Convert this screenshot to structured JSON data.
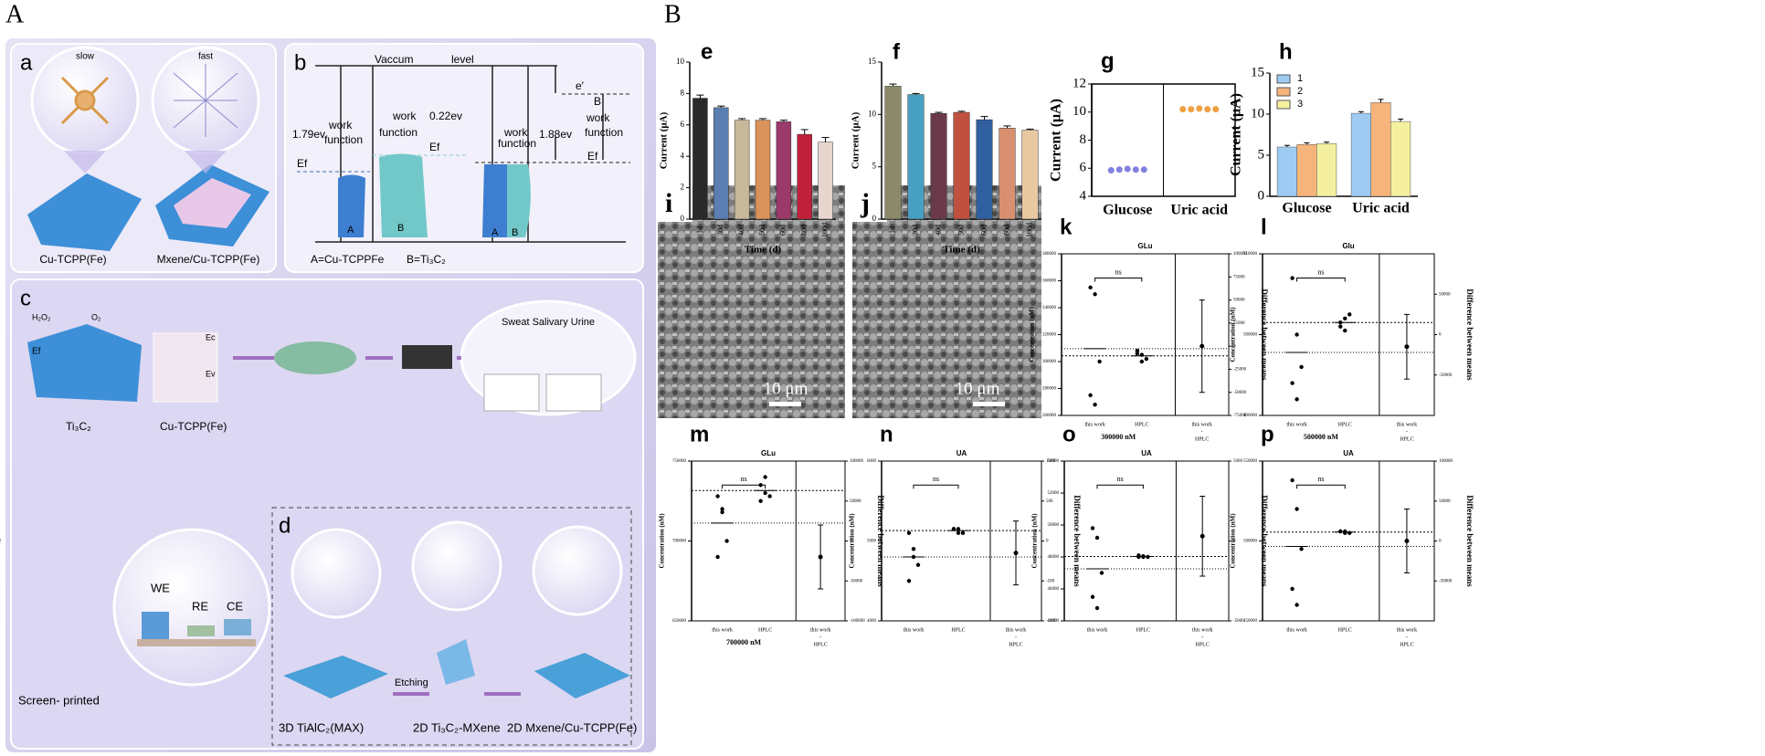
{
  "figure": {
    "label_A": "A",
    "label_B": "B"
  },
  "panel_a": {
    "label": "a",
    "slow": "slow",
    "fast": "fast",
    "caption_left": "Cu-TCPP(Fe)",
    "caption_right": "Mxene/Cu-TCPP(Fe)"
  },
  "panel_b": {
    "label": "b",
    "texts": [
      "Vaccum",
      "level",
      "1.79ev",
      "work",
      "function",
      "work",
      "function",
      "0.22ev",
      "Ef",
      "Ef",
      "A",
      "B",
      "A",
      "B",
      "work",
      "function",
      "1.88ev",
      "e′",
      "B",
      "work",
      "function",
      "Ef",
      "A=Cu-TCPPFe",
      "B=Ti₃C₂"
    ]
  },
  "panel_c": {
    "label": "c",
    "texts": [
      "H₂O₂",
      "O₂",
      "Ec",
      "Ef",
      "Ev",
      "Ti₃C₂",
      "Cu-TCPP(Fe)",
      "Sweat  Salivary  Urine",
      "WE",
      "RE",
      "CE",
      "Screen- printed"
    ]
  },
  "panel_d": {
    "label": "d",
    "texts": [
      "3D TiAlC₂(MAX)",
      "Etching",
      "2D Ti₃C₂-MXene",
      "2D Mxene/Cu-TCPP(Fe)"
    ]
  },
  "images": [
    {
      "label": "i",
      "scale": "10 μm"
    },
    {
      "label": "j",
      "scale": "10 μm"
    }
  ],
  "chart_data": [
    {
      "type": "bar",
      "label": "e",
      "categories": [
        "1d",
        "30d",
        "40d",
        "50d",
        "60d",
        "80d",
        "100d"
      ],
      "values": [
        7.7,
        7.1,
        6.3,
        6.3,
        6.2,
        5.4,
        4.9
      ],
      "errors": [
        0.2,
        0.1,
        0.1,
        0.1,
        0.1,
        0.3,
        0.3
      ],
      "colors": [
        "#2a2a2a",
        "#5a7fb0",
        "#c8b89a",
        "#d9925a",
        "#9a3a6a",
        "#c0203a",
        "#e6d6ce"
      ],
      "ylim": [
        0,
        10
      ],
      "yticks": [
        0,
        2,
        4,
        6,
        8,
        10
      ],
      "ylabel": "Current (μA)",
      "xlabel": "Time (d)"
    },
    {
      "type": "bar",
      "label": "f",
      "categories": [
        "1d",
        "30d",
        "40d",
        "50d",
        "60d",
        "80d",
        "100d"
      ],
      "values": [
        12.7,
        11.9,
        10.1,
        10.2,
        9.5,
        8.7,
        8.5
      ],
      "errors": [
        0.2,
        0.1,
        0.1,
        0.1,
        0.3,
        0.2,
        0.1
      ],
      "colors": [
        "#8a8a6a",
        "#48a0c0",
        "#6a3a4a",
        "#c05040",
        "#3060a0",
        "#d89070",
        "#e8c8a0"
      ],
      "ylim": [
        0,
        15
      ],
      "yticks": [
        0,
        5,
        10,
        15
      ],
      "ylabel": "Current (μA)",
      "xlabel": "Time (d)"
    },
    {
      "type": "dot",
      "label": "g",
      "categories": [
        "Glucose",
        "Uric acid"
      ],
      "points": [
        [
          5.85,
          5.9,
          5.95,
          5.9,
          5.9
        ],
        [
          10.2,
          10.2,
          10.25,
          10.2,
          10.2
        ]
      ],
      "colors": [
        "#8080e0",
        "#f0a040"
      ],
      "ylim": [
        4,
        12
      ],
      "yticks": [
        4,
        6,
        8,
        10,
        12
      ],
      "ylabel": "Current (μA)"
    },
    {
      "type": "grouped_bar",
      "label": "h",
      "categories": [
        "Glucose",
        "Uric acid"
      ],
      "series": [
        {
          "name": "1",
          "color": "#9ecbf2",
          "values": [
            6.0,
            10.1
          ],
          "errors": [
            0.2,
            0.2
          ]
        },
        {
          "name": "2",
          "color": "#f7b47a",
          "values": [
            6.3,
            11.4
          ],
          "errors": [
            0.2,
            0.4
          ]
        },
        {
          "name": "3",
          "color": "#f5f0a0",
          "values": [
            6.4,
            9.1
          ],
          "errors": [
            0.2,
            0.3
          ]
        }
      ],
      "ylim": [
        0,
        15
      ],
      "yticks": [
        0,
        5,
        10,
        15
      ],
      "ylabel": "Current (μA)",
      "legend": "upper left"
    },
    {
      "type": "comparison",
      "label": "k",
      "title": "GLu",
      "ylim": [
        260000,
        380000
      ],
      "yticks": [
        260000,
        280000,
        300000,
        320000,
        340000,
        360000,
        380000
      ],
      "y2lim": [
        -75000,
        100000
      ],
      "y2ticks": [
        -75000,
        -50000,
        -25000,
        0,
        25000,
        50000,
        75000,
        100000
      ],
      "this_work": [
        355000,
        350000,
        300000,
        275000,
        268000
      ],
      "hplc": [
        308000,
        305000,
        302000,
        306000,
        300000
      ],
      "diff": 0,
      "diff_error": 50000,
      "categories": [
        "this work",
        "HPLC"
      ],
      "diff_label": [
        "this work",
        "-",
        "HPLC"
      ],
      "ns": "ns",
      "ylabel": "Concentration (nM)",
      "y2label": "Difference between means",
      "footnote": "300000 nM"
    },
    {
      "type": "comparison",
      "label": "l",
      "title": "Glu",
      "ylim": [
        490000,
        510000
      ],
      "yticks": [
        490000,
        500000,
        510000
      ],
      "y2lim": [
        -100000,
        100000
      ],
      "y2ticks": [
        -50000,
        0,
        50000
      ],
      "this_work": [
        507000,
        500000,
        496000,
        494000,
        492000
      ],
      "hplc": [
        501000,
        502000,
        502500,
        501500,
        500500
      ],
      "diff": -15000,
      "diff_error": 40000,
      "categories": [
        "this work",
        "HPLC"
      ],
      "diff_label": [
        "this work",
        "-",
        "HPLC"
      ],
      "ns": "ns",
      "ylabel": "Concentration (nM)",
      "y2label": "Difference between means",
      "footnote": "500000 nM"
    },
    {
      "type": "comparison",
      "label": "m",
      "title": "GLu",
      "ylim": [
        650000,
        750000
      ],
      "yticks": [
        650000,
        700000,
        750000
      ],
      "y2lim": [
        -100000,
        100000
      ],
      "y2ticks": [
        -100000,
        -50000,
        0,
        50000,
        100000
      ],
      "this_work": [
        728000,
        718000,
        700000,
        690000,
        720000
      ],
      "hplc": [
        735000,
        730000,
        728000,
        725000,
        740000
      ],
      "diff": -20000,
      "diff_error": 40000,
      "categories": [
        "this work",
        "HPLC"
      ],
      "diff_label": [
        "this work",
        "-",
        "HPLC"
      ],
      "ns": "ns",
      "ylabel": "Concentration (nM)",
      "y2label": "Difference between means",
      "footnote": "700000 nM"
    },
    {
      "type": "comparison",
      "label": "n",
      "title": "UA",
      "ylim": [
        4000,
        6000
      ],
      "yticks": [
        4000,
        5000,
        6000
      ],
      "y2lim": [
        -1000,
        1000
      ],
      "y2ticks": [
        -1000,
        -500,
        0,
        500,
        1000
      ],
      "this_work": [
        5100,
        4800,
        4700,
        4500,
        4900
      ],
      "hplc": [
        5150,
        5150,
        5100,
        5150,
        5100
      ],
      "diff": -150,
      "diff_error": 400,
      "categories": [
        "this work",
        "HPLC"
      ],
      "diff_label": [
        "this work",
        "-",
        "HPLC"
      ],
      "ns": "ns",
      "ylabel": "Concentration (nM)",
      "y2label": "Difference between means"
    },
    {
      "type": "comparison",
      "label": "o",
      "title": "UA",
      "ylim": [
        44000,
        54000
      ],
      "yticks": [
        44000,
        46000,
        48000,
        50000,
        52000,
        54000
      ],
      "y2lim": [
        -5000,
        5000
      ],
      "y2ticks": [
        -5000,
        0,
        5000
      ],
      "this_work": [
        49800,
        49200,
        47000,
        45500,
        44800
      ],
      "hplc": [
        48100,
        48050,
        48000,
        48000,
        48000
      ],
      "diff": 300,
      "diff_error": 2500,
      "categories": [
        "this work",
        "HPLC"
      ],
      "diff_label": [
        "this work",
        "-",
        "HPLC"
      ],
      "ns": "ns",
      "ylabel": "Concentration (nM)",
      "y2label": "Difference between means"
    },
    {
      "type": "comparison",
      "label": "p",
      "title": "UA",
      "ylim": [
        450000,
        550000
      ],
      "yticks": [
        450000,
        500000,
        550000
      ],
      "y2lim": [
        -100000,
        100000
      ],
      "y2ticks": [
        -50000,
        0,
        50000,
        100000
      ],
      "this_work": [
        538000,
        520000,
        495000,
        470000,
        460000
      ],
      "hplc": [
        506000,
        506000,
        505000,
        506000,
        505000
      ],
      "diff": 0,
      "diff_error": 40000,
      "categories": [
        "this work",
        "HPLC"
      ],
      "diff_label": [
        "this work",
        "-",
        "HPLC"
      ],
      "ns": "ns",
      "ylabel": "Concentration (nM)",
      "y2label": "Difference between means"
    }
  ]
}
